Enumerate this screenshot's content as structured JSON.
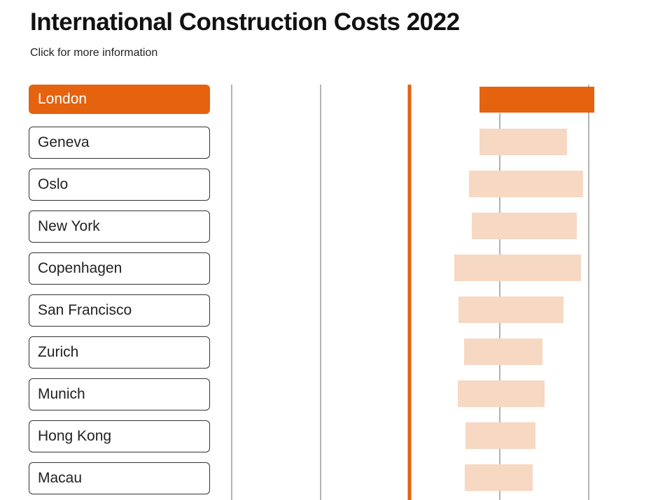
{
  "title": "International Construction Costs 2022",
  "subtitle": "Click for more information",
  "colors": {
    "accent": "#e5620f",
    "range_fill": "#f7d8c3",
    "grid": "#9a9a9a"
  },
  "chart_data": {
    "type": "bar",
    "subtype": "floating-range",
    "categories": [
      "London",
      "Geneva",
      "Oslo",
      "New York",
      "Copenhagen",
      "San Francisco",
      "Zurich",
      "Munich",
      "Hong Kong",
      "Macau"
    ],
    "selected": "London",
    "ranges": [
      [
        278,
        442
      ],
      [
        278,
        403
      ],
      [
        263,
        426
      ],
      [
        267,
        417
      ],
      [
        242,
        423
      ],
      [
        248,
        398
      ],
      [
        256,
        368
      ],
      [
        247,
        371
      ],
      [
        258,
        358
      ],
      [
        257,
        354
      ]
    ],
    "reference_lines": [
      -76,
      51,
      178,
      307,
      434
    ],
    "highlight_line": 178,
    "xlim": [
      -76,
      434
    ],
    "grid": true
  }
}
